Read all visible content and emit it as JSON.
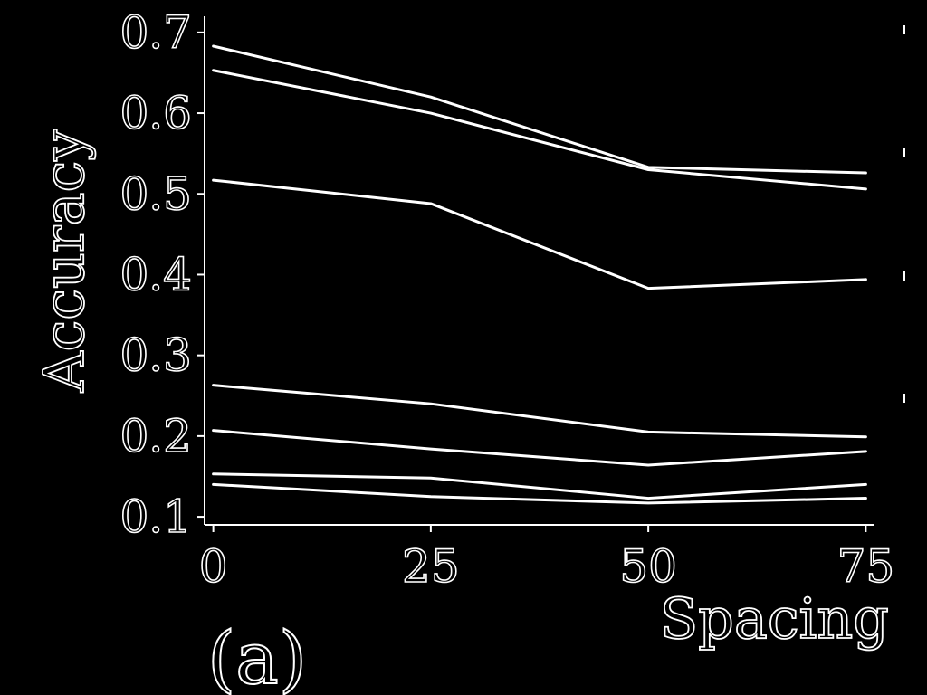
{
  "chart_data": {
    "type": "line",
    "title": "",
    "panel_label": "(a)",
    "xlabel": "Spacing",
    "ylabel": "Accuracy",
    "x": [
      0,
      25,
      50,
      75
    ],
    "x_ticks": [
      "0",
      "25",
      "50",
      "75"
    ],
    "y_ticks": [
      "0.1",
      "0.2",
      "0.3",
      "0.4",
      "0.5",
      "0.6",
      "0.7"
    ],
    "xlim": [
      -1,
      76
    ],
    "ylim": [
      0.09,
      0.72
    ],
    "grid": false,
    "legend": "none",
    "line_color": "#ffffff",
    "background": "#000000",
    "series": [
      {
        "values": [
          0.683,
          0.62,
          0.533,
          0.526
        ]
      },
      {
        "values": [
          0.653,
          0.6,
          0.53,
          0.506
        ]
      },
      {
        "values": [
          0.517,
          0.488,
          0.383,
          0.394
        ]
      },
      {
        "values": [
          0.263,
          0.24,
          0.205,
          0.199
        ]
      },
      {
        "values": [
          0.207,
          0.184,
          0.164,
          0.181
        ]
      },
      {
        "values": [
          0.153,
          0.148,
          0.123,
          0.14
        ]
      },
      {
        "values": [
          0.14,
          0.125,
          0.117,
          0.123
        ]
      }
    ]
  }
}
